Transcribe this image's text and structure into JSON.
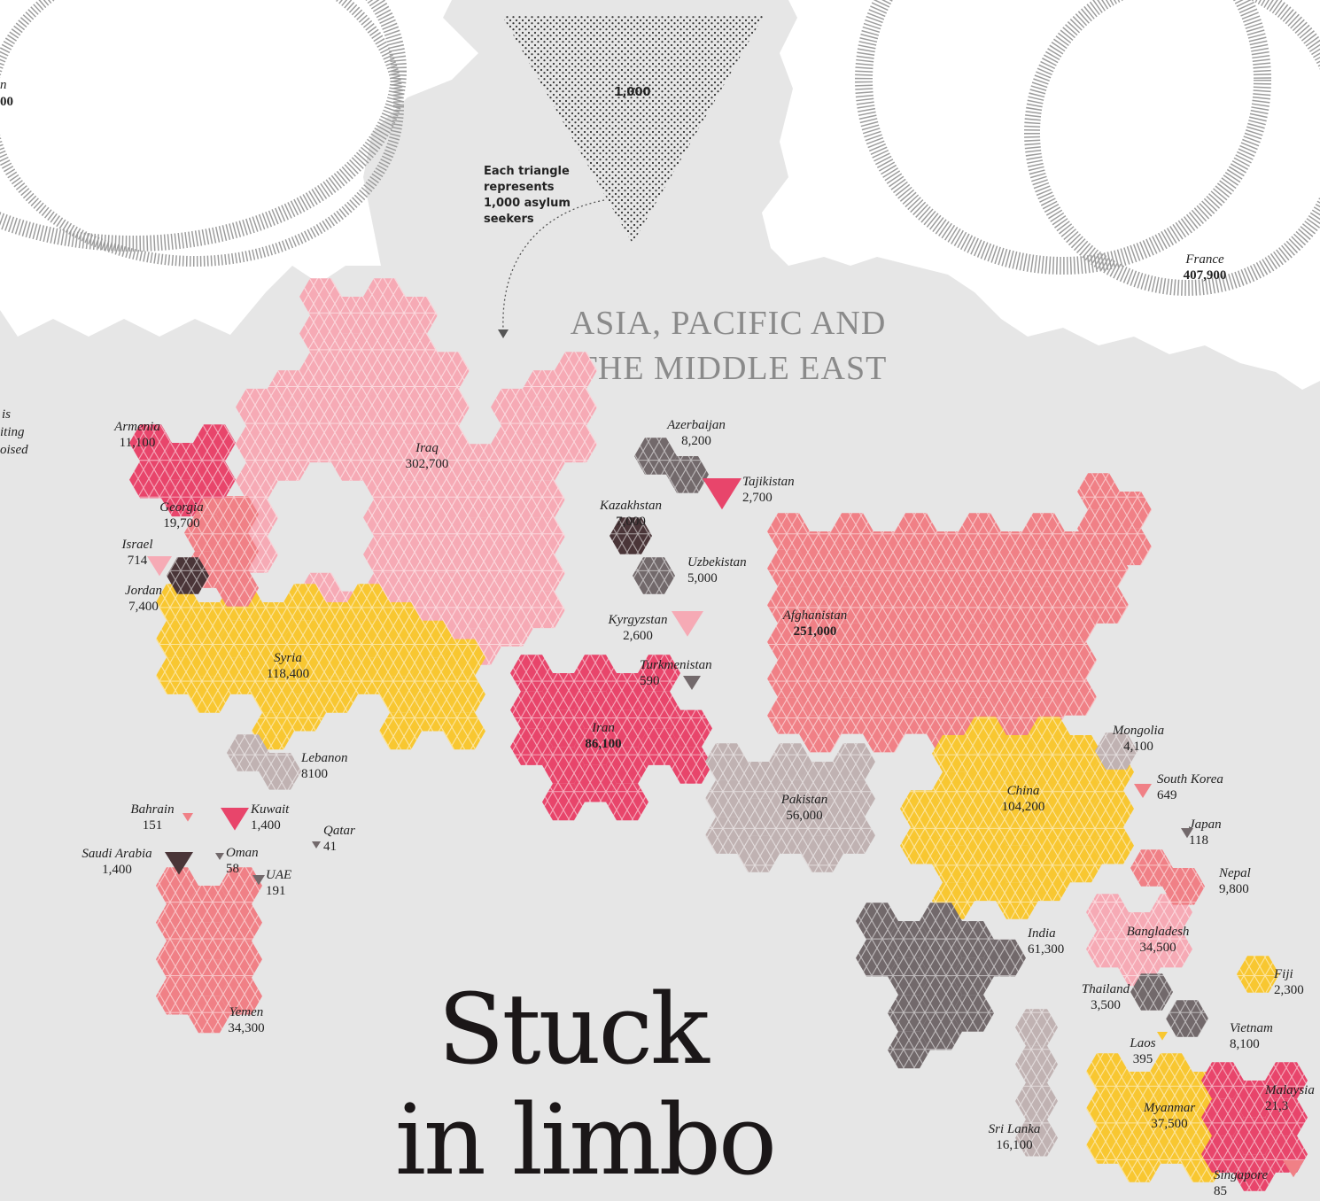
{
  "region_title": [
    "ASIA, PACIFIC AND",
    "THE MIDDLE EAST"
  ],
  "headline": [
    "Stuck",
    "in limbo"
  ],
  "legend": {
    "triangle_value": "1,000",
    "note": [
      "Each triangle",
      "represents",
      "1,000 asylum",
      "seekers"
    ]
  },
  "edge_fragments": {
    "top_left": [
      "n",
      "00"
    ],
    "left_mid": [
      "is",
      "iting",
      "oised"
    ],
    "right_partial_value": "21,3"
  },
  "colors": {
    "pink_light": "#f6aab5",
    "salmon": "#f08086",
    "crimson": "#e8456b",
    "yellow": "#f8c731",
    "taupe": "#c0b2b2",
    "gray_dark": "#72696b",
    "brown_dark": "#4a3538",
    "land_bg": "#e6e6e6"
  },
  "countries": [
    {
      "name": "Armenia",
      "value": "11,100",
      "color": "crimson"
    },
    {
      "name": "Georgia",
      "value": "19,700",
      "color": "salmon"
    },
    {
      "name": "Israel",
      "value": "714",
      "color": "pink_light"
    },
    {
      "name": "Jordan",
      "value": "7,400",
      "color": "brown_dark"
    },
    {
      "name": "Iraq",
      "value": "302,700",
      "color": "pink_light"
    },
    {
      "name": "Syria",
      "value": "118,400",
      "color": "yellow"
    },
    {
      "name": "Lebanon",
      "value": "8100",
      "color": "taupe"
    },
    {
      "name": "Bahrain",
      "value": "151",
      "color": "salmon"
    },
    {
      "name": "Kuwait",
      "value": "1,400",
      "color": "crimson"
    },
    {
      "name": "Qatar",
      "value": "41",
      "color": "gray_dark"
    },
    {
      "name": "Saudi Arabia",
      "value": "1,400",
      "color": "brown_dark"
    },
    {
      "name": "Oman",
      "value": "58",
      "color": "gray_dark"
    },
    {
      "name": "UAE",
      "value": "191",
      "color": "gray_dark"
    },
    {
      "name": "Yemen",
      "value": "34,300",
      "color": "salmon"
    },
    {
      "name": "Azerbaijan",
      "value": "8,200",
      "color": "gray_dark"
    },
    {
      "name": "Tajikistan",
      "value": "2,700",
      "color": "crimson"
    },
    {
      "name": "Kazakhstan",
      "value": "7,000",
      "color": "brown_dark"
    },
    {
      "name": "Uzbekistan",
      "value": "5,000",
      "color": "gray_dark"
    },
    {
      "name": "Kyrgyzstan",
      "value": "2,600",
      "color": "pink_light"
    },
    {
      "name": "Turkmenistan",
      "value": "590",
      "color": "gray_dark"
    },
    {
      "name": "Afghanistan",
      "value": "251,000",
      "color": "salmon"
    },
    {
      "name": "Iran",
      "value": "86,100",
      "color": "crimson"
    },
    {
      "name": "Pakistan",
      "value": "56,000",
      "color": "taupe"
    },
    {
      "name": "Mongolia",
      "value": "4,100",
      "color": "taupe"
    },
    {
      "name": "China",
      "value": "104,200",
      "color": "yellow"
    },
    {
      "name": "South Korea",
      "value": "649",
      "color": "salmon"
    },
    {
      "name": "Japan",
      "value": "118",
      "color": "gray_dark"
    },
    {
      "name": "Nepal",
      "value": "9,800",
      "color": "salmon"
    },
    {
      "name": "India",
      "value": "61,300",
      "color": "gray_dark"
    },
    {
      "name": "Bangladesh",
      "value": "34,500",
      "color": "pink_light"
    },
    {
      "name": "Fiji",
      "value": "2,300",
      "color": "yellow"
    },
    {
      "name": "Thailand",
      "value": "3,500",
      "color": "gray_dark"
    },
    {
      "name": "Laos",
      "value": "395",
      "color": "yellow"
    },
    {
      "name": "Vietnam",
      "value": "8,100",
      "color": "gray_dark"
    },
    {
      "name": "Malaysia",
      "value": "21,3",
      "color": "crimson"
    },
    {
      "name": "Myanmar",
      "value": "37,500",
      "color": "yellow"
    },
    {
      "name": "Sri Lanka",
      "value": "16,100",
      "color": "taupe"
    },
    {
      "name": "Singapore",
      "value": "85",
      "color": "salmon"
    },
    {
      "name": "France",
      "value": "407,900",
      "color": "gray_dark"
    }
  ]
}
